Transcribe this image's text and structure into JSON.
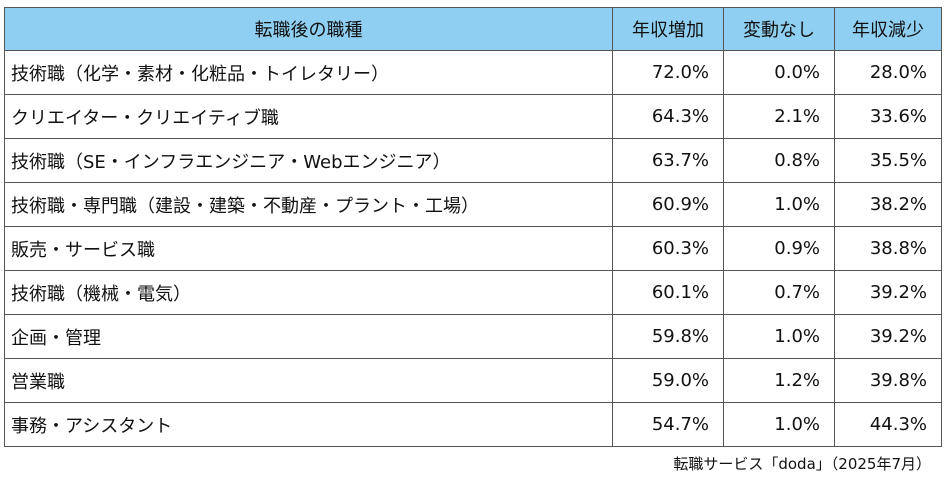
{
  "table": {
    "columns": [
      "転職後の職種",
      "年収増加",
      "変動なし",
      "年収減少"
    ],
    "rows": [
      {
        "category": "技術職（化学・素材・化粧品・トイレタリー）",
        "increase": "72.0%",
        "unchanged": "0.0%",
        "decrease": "28.0%"
      },
      {
        "category": "クリエイター・クリエイティブ職",
        "increase": "64.3%",
        "unchanged": "2.1%",
        "decrease": "33.6%"
      },
      {
        "category": "技術職（SE・インフラエンジニア・Webエンジニア）",
        "increase": "63.7%",
        "unchanged": "0.8%",
        "decrease": "35.5%"
      },
      {
        "category": "技術職・専門職（建設・建築・不動産・プラント・工場）",
        "increase": "60.9%",
        "unchanged": "1.0%",
        "decrease": "38.2%"
      },
      {
        "category": "販売・サービス職",
        "increase": "60.3%",
        "unchanged": "0.9%",
        "decrease": "38.8%"
      },
      {
        "category": "技術職（機械・電気）",
        "increase": "60.1%",
        "unchanged": "0.7%",
        "decrease": "39.2%"
      },
      {
        "category": "企画・管理",
        "increase": "59.8%",
        "unchanged": "1.0%",
        "decrease": "39.2%"
      },
      {
        "category": "営業職",
        "increase": "59.0%",
        "unchanged": "1.2%",
        "decrease": "39.8%"
      },
      {
        "category": "事務・アシスタント",
        "increase": "54.7%",
        "unchanged": "1.0%",
        "decrease": "44.3%"
      }
    ]
  },
  "source": "転職サービス「doda」（2025年7月）",
  "colors": {
    "header_bg": "#8fd0f2",
    "border": "#555555",
    "text": "#111111"
  }
}
